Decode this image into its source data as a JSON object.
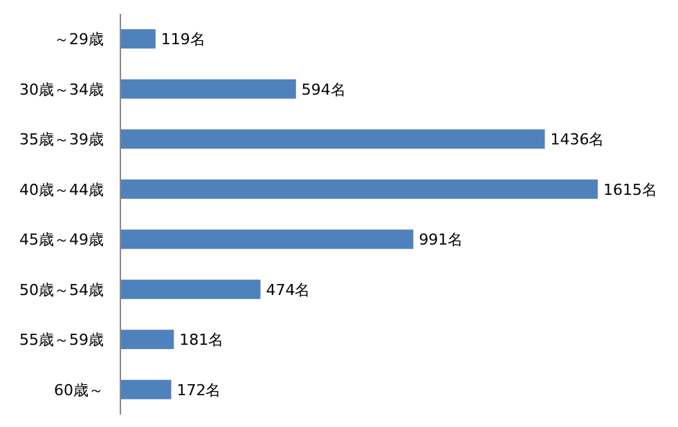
{
  "chart_data": {
    "type": "bar",
    "orientation": "horizontal",
    "categories": [
      "～29歳",
      "30歳～34歳",
      "35歳～39歳",
      "40歳～44歳",
      "45歳～49歳",
      "50歳～54歳",
      "55歳～59歳",
      "60歳～"
    ],
    "values": [
      119,
      594,
      1436,
      1615,
      991,
      474,
      181,
      172
    ],
    "value_labels": [
      "119名",
      "594名",
      "1436名",
      "1615名",
      "991名",
      "474名",
      "181名",
      "172名"
    ],
    "color": "#4f81bd"
  }
}
